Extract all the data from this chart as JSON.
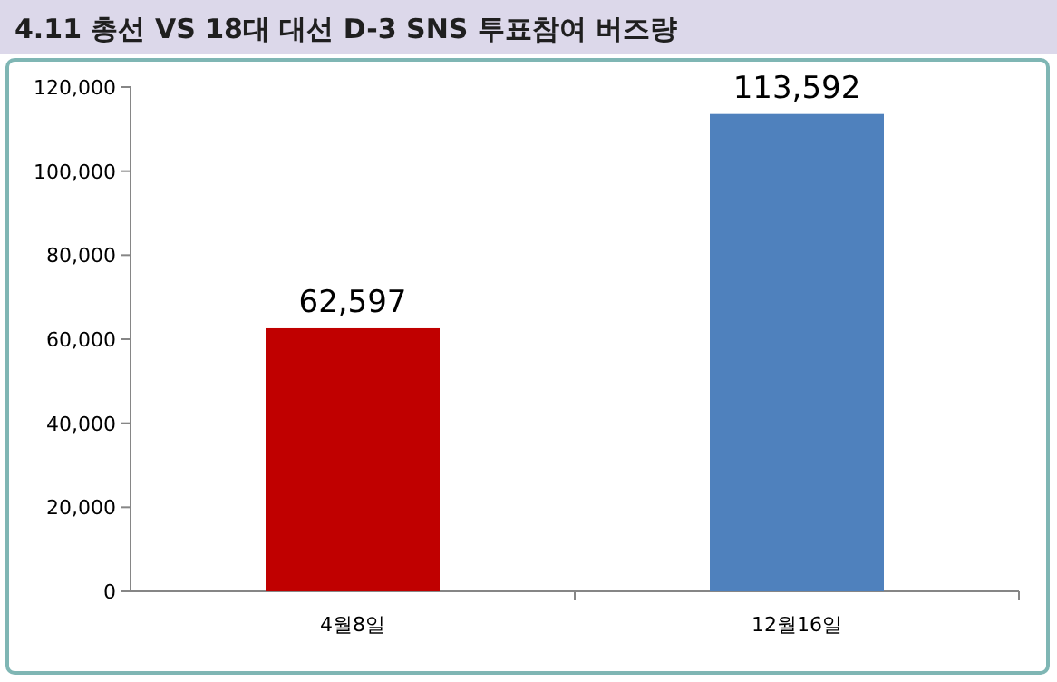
{
  "chart_data": {
    "type": "bar",
    "title": "4.11 총선 VS 18대 대선 D-3 SNS 투표참여 버즈량",
    "categories": [
      "4월8일",
      "12월16일"
    ],
    "values": [
      62597,
      113592
    ],
    "colors": [
      "#c00000",
      "#4f81bd"
    ],
    "ylim": [
      0,
      120000
    ],
    "yticks": [
      {
        "value": 0,
        "label": "0"
      },
      {
        "value": 20000,
        "label": "20,000"
      },
      {
        "value": 40000,
        "label": "40,000"
      },
      {
        "value": 60000,
        "label": "60,000"
      },
      {
        "value": 80000,
        "label": "80,000"
      },
      {
        "value": 100000,
        "label": "100,000"
      },
      {
        "value": 120000,
        "label": "120,000"
      }
    ],
    "value_labels": [
      "62,597",
      "113,592"
    ]
  }
}
